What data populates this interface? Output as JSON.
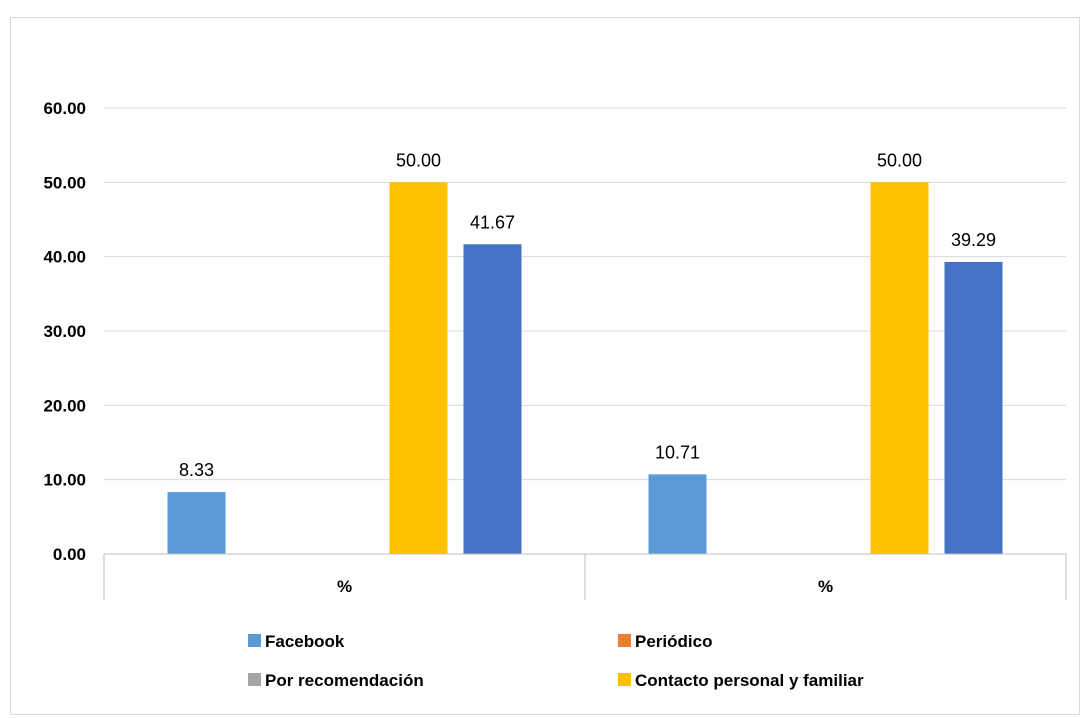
{
  "chart_data": {
    "type": "bar",
    "categories": [
      "%",
      "%"
    ],
    "series": [
      {
        "name": "Facebook",
        "color": "#5b9bd5",
        "values": [
          8.33,
          10.71
        ]
      },
      {
        "name": "Periódico",
        "color": "#ed7d31",
        "values": [
          0,
          0
        ]
      },
      {
        "name": "Por recomendación",
        "color": "#a5a5a5",
        "values": [
          0,
          0
        ]
      },
      {
        "name": "Contacto personal y familiar",
        "color": "#ffc000",
        "values": [
          50.0,
          50.0
        ]
      },
      {
        "name": "",
        "color": "#4472c4",
        "values": [
          41.67,
          39.29
        ]
      }
    ],
    "data_labels": [
      [
        "8.33",
        "",
        "",
        "50.00",
        "41.67"
      ],
      [
        "10.71",
        "",
        "",
        "50.00",
        "39.29"
      ]
    ],
    "yticks": [
      "0.00",
      "10.00",
      "20.00",
      "30.00",
      "40.00",
      "50.00",
      "60.00"
    ],
    "ylim": [
      0,
      60
    ],
    "grid": true,
    "legend_position": "bottom"
  }
}
